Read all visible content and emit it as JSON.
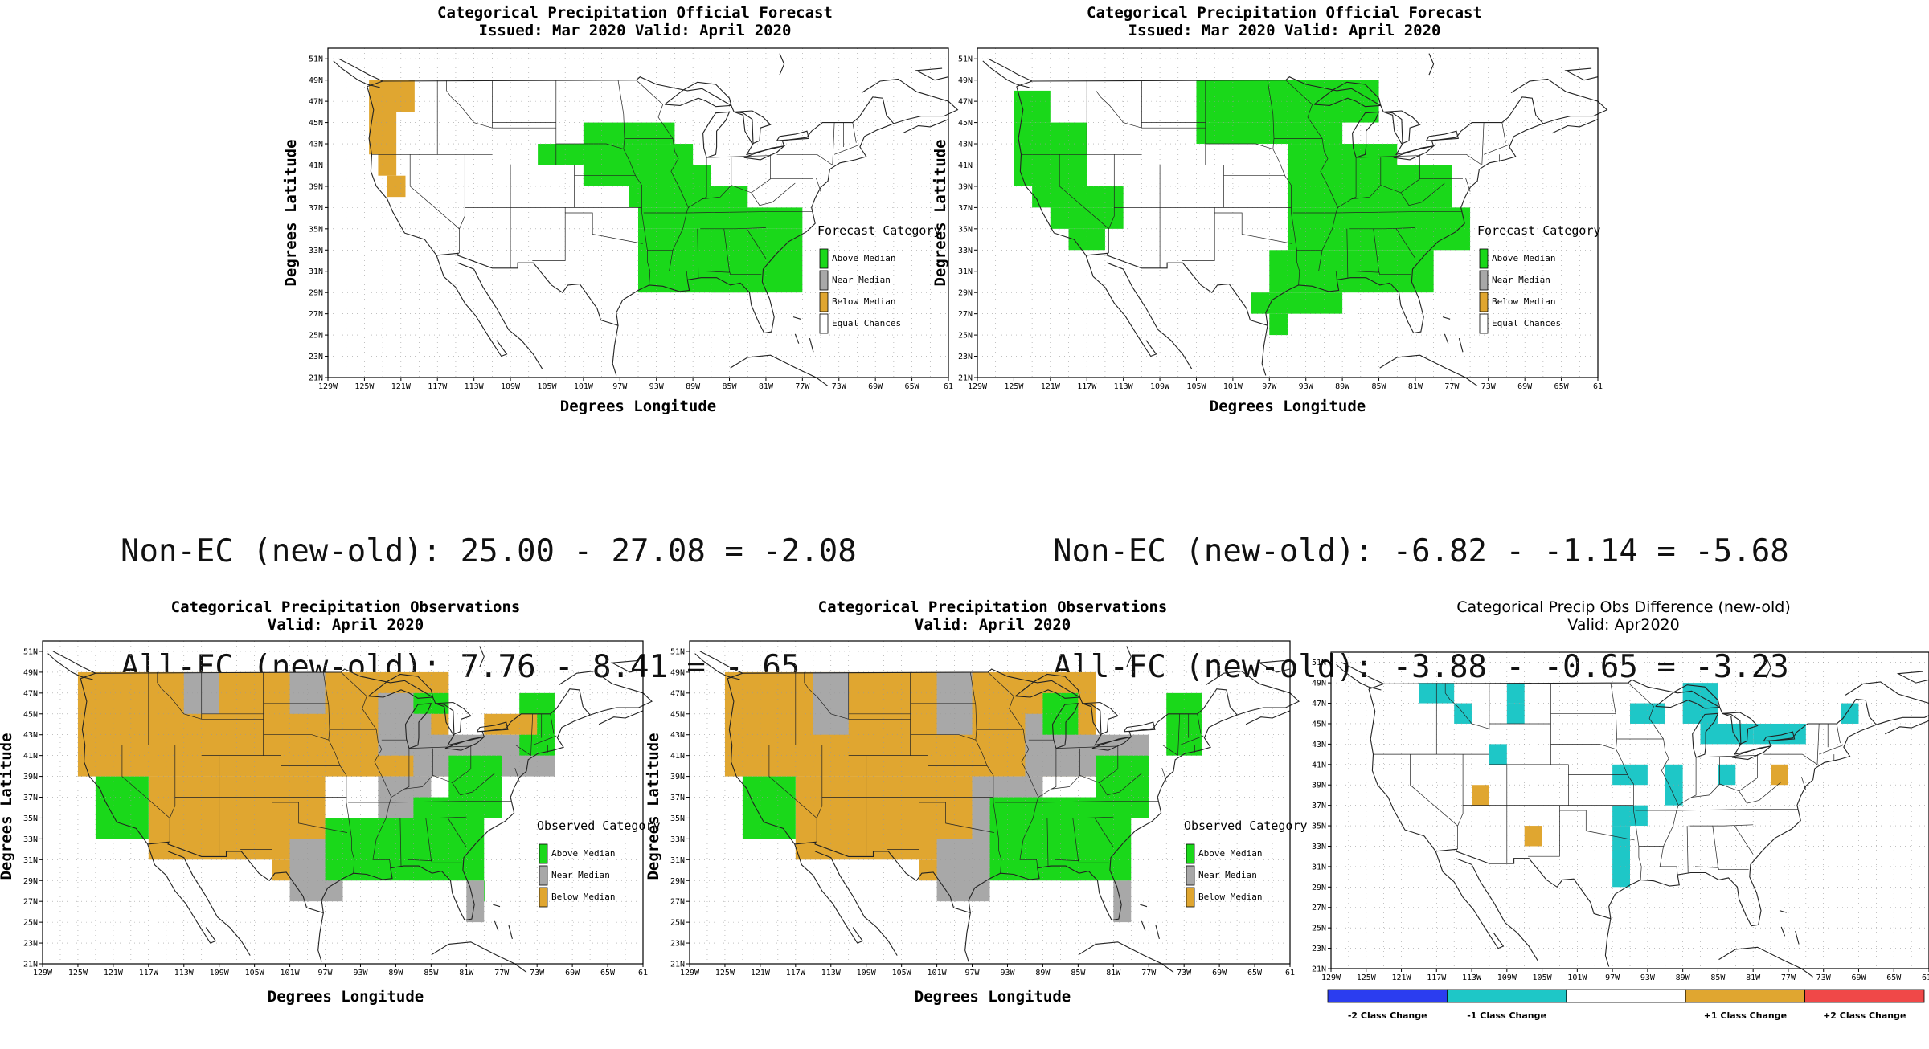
{
  "panels": [
    {
      "id": "fc-old",
      "title1": "Categorical Precipitation Official Forecast",
      "title2": "Issued: Mar 2020 Valid: April 2020",
      "xlabel": "Degrees Longitude",
      "ylabel": "Degrees Latitude",
      "legend_title": "Forecast Category",
      "legend_items": [
        {
          "label": "Above Median",
          "color": "#1ad81a"
        },
        {
          "label": "Near Median",
          "color": "#a8a8a8"
        },
        {
          "label": "Below Median",
          "color": "#e0a630"
        },
        {
          "label": "Equal Chances",
          "color": "#ffffff"
        }
      ]
    },
    {
      "id": "fc-new",
      "title1": "Categorical Precipitation Official Forecast",
      "title2": "Issued: Mar 2020 Valid: April 2020",
      "xlabel": "Degrees Longitude",
      "ylabel": "Degrees Latitude",
      "legend_title": "Forecast Category",
      "legend_items": [
        {
          "label": "Above Median",
          "color": "#1ad81a"
        },
        {
          "label": "Near Median",
          "color": "#a8a8a8"
        },
        {
          "label": "Below Median",
          "color": "#e0a630"
        },
        {
          "label": "Equal Chances",
          "color": "#ffffff"
        }
      ]
    },
    {
      "id": "obs-old",
      "title1": "Categorical Precipitation Observations",
      "title2": "Valid: April 2020",
      "xlabel": "Degrees Longitude",
      "ylabel": "Degrees Latitude",
      "legend_title": "Observed Category",
      "legend_items": [
        {
          "label": "Above Median",
          "color": "#1ad81a"
        },
        {
          "label": "Near Median",
          "color": "#a8a8a8"
        },
        {
          "label": "Below Median",
          "color": "#e0a630"
        }
      ]
    },
    {
      "id": "obs-new",
      "title1": "Categorical Precipitation Observations",
      "title2": "Valid: April 2020",
      "xlabel": "Degrees Longitude",
      "ylabel": "Degrees Latitude",
      "legend_title": "Observed Category",
      "legend_items": [
        {
          "label": "Above Median",
          "color": "#1ad81a"
        },
        {
          "label": "Near Median",
          "color": "#a8a8a8"
        },
        {
          "label": "Below Median",
          "color": "#e0a630"
        }
      ]
    },
    {
      "id": "diff",
      "title1": "Categorical Precip Obs Difference (new-old)",
      "title2": "Valid: Apr2020",
      "xlabel": "",
      "ylabel": "",
      "legend_title": "",
      "legend_items": [],
      "diff_legend": [
        {
          "label": "-2 Class Change",
          "color": "#2b3df0"
        },
        {
          "label": "-1 Class Change",
          "color": "#1ec7c7"
        },
        {
          "label": "",
          "color": "#ffffff"
        },
        {
          "label": "+1 Class Change",
          "color": "#e0a630"
        },
        {
          "label": "+2 Class Change",
          "color": "#f04848"
        }
      ]
    }
  ],
  "axes": {
    "lat_ticks": [
      "21N",
      "23N",
      "25N",
      "27N",
      "29N",
      "31N",
      "33N",
      "35N",
      "37N",
      "39N",
      "41N",
      "43N",
      "45N",
      "47N",
      "49N",
      "51N"
    ],
    "lon_ticks": [
      "129W",
      "125W",
      "121W",
      "117W",
      "113W",
      "109W",
      "105W",
      "101W",
      "97W",
      "93W",
      "89W",
      "85W",
      "81W",
      "77W",
      "73W",
      "69W",
      "65W",
      "61W"
    ],
    "lon_ticks_short": [
      "129W",
      "125W",
      "121W",
      "117W",
      "113W",
      "109W",
      "105W",
      "101W",
      "97W",
      "93W",
      "89W",
      "85W",
      "81W",
      "77W",
      "73W",
      "69W",
      "65W",
      "61"
    ]
  },
  "stats": {
    "left_line1": "Non-EC (new-old): 25.00 - 27.08 = -2.08",
    "left_line2": "All-FC (new-old): 7.76 - 8.41 = -.65",
    "right_line1": "Non-EC (new-old): -6.82 - -1.14 = -5.68",
    "right_line2": "All-FC (new-old): -3.88 - -0.65 = -3.23"
  },
  "map_data": {
    "grid_step_deg": 2,
    "categories": {
      "A": "Above Median",
      "N": "Near Median",
      "B": "Below Median",
      "C": "-1 Class Change",
      "P": "+1 Class Change"
    },
    "fc_old": [
      [
        "B",
        -124.5,
        46,
        -119.5,
        49
      ],
      [
        "B",
        -124.5,
        42,
        -121.5,
        46
      ],
      [
        "B",
        -123.5,
        40,
        -121.5,
        42
      ],
      [
        "B",
        -122.5,
        38,
        -120.5,
        40
      ],
      [
        "A",
        -101,
        43,
        -91,
        45
      ],
      [
        "A",
        -106,
        41,
        -89,
        43
      ],
      [
        "A",
        -101,
        39,
        -87,
        41
      ],
      [
        "A",
        -96,
        37,
        -83,
        39
      ],
      [
        "A",
        -95,
        35,
        -77,
        37
      ],
      [
        "A",
        -95,
        29,
        -77,
        35
      ],
      [
        "A",
        -87,
        29,
        -83,
        31
      ]
    ],
    "fc_new": [
      [
        "A",
        -125,
        45,
        -121,
        48
      ],
      [
        "A",
        -125,
        39,
        -117,
        45
      ],
      [
        "A",
        -123,
        37,
        -113,
        39
      ],
      [
        "A",
        -121,
        35,
        -113,
        37
      ],
      [
        "A",
        -119,
        33,
        -115,
        35
      ],
      [
        "A",
        -105,
        45,
        -85,
        49
      ],
      [
        "A",
        -105,
        43,
        -89,
        45
      ],
      [
        "A",
        -95,
        41,
        -83,
        43
      ],
      [
        "A",
        -95,
        37,
        -77,
        41
      ],
      [
        "A",
        -95,
        33,
        -75,
        37
      ],
      [
        "A",
        -97,
        29,
        -79,
        33
      ],
      [
        "A",
        -99,
        27,
        -89,
        29
      ],
      [
        "A",
        -97,
        25,
        -95,
        27
      ]
    ],
    "obs_old": [
      [
        "B",
        -125,
        39,
        -83,
        49
      ],
      [
        "B",
        -117,
        31,
        -97,
        39
      ],
      [
        "B",
        -103,
        29,
        -97,
        31
      ],
      [
        "N",
        -113,
        45,
        -109,
        49
      ],
      [
        "N",
        -101,
        45,
        -97,
        49
      ],
      [
        "N",
        -91,
        41,
        -85,
        47
      ],
      [
        "N",
        -87,
        39,
        -77,
        43
      ],
      [
        "N",
        -91,
        35,
        -85,
        39
      ],
      [
        "N",
        -77,
        39,
        -71,
        43
      ],
      [
        "N",
        -101,
        27,
        -95,
        33
      ],
      [
        "N",
        -81,
        25,
        -79,
        29
      ],
      [
        "A",
        -123,
        33,
        -117,
        39
      ],
      [
        "A",
        -97,
        29,
        -85,
        35
      ],
      [
        "A",
        -87,
        29,
        -79,
        37
      ],
      [
        "A",
        -83,
        35,
        -77,
        41
      ],
      [
        "A",
        -75,
        41,
        -71,
        47
      ],
      [
        "A",
        -79,
        27,
        -79,
        29
      ],
      [
        "A",
        -87,
        45,
        -83,
        47
      ],
      [
        "B",
        -79,
        43,
        -73,
        45
      ]
    ],
    "obs_new": [
      [
        "B",
        -125,
        39,
        -83,
        49
      ],
      [
        "B",
        -117,
        31,
        -97,
        39
      ],
      [
        "B",
        -103,
        29,
        -99,
        31
      ],
      [
        "N",
        -115,
        43,
        -111,
        49
      ],
      [
        "N",
        -101,
        43,
        -97,
        49
      ],
      [
        "N",
        -91,
        39,
        -85,
        45
      ],
      [
        "N",
        -87,
        39,
        -77,
        43
      ],
      [
        "N",
        -97,
        33,
        -89,
        39
      ],
      [
        "N",
        -101,
        27,
        -95,
        33
      ],
      [
        "N",
        -81,
        25,
        -79,
        29
      ],
      [
        "A",
        -123,
        33,
        -117,
        39
      ],
      [
        "A",
        -95,
        29,
        -85,
        37
      ],
      [
        "A",
        -87,
        29,
        -79,
        37
      ],
      [
        "A",
        -83,
        35,
        -77,
        41
      ],
      [
        "A",
        -75,
        41,
        -71,
        47
      ],
      [
        "A",
        -89,
        43,
        -85,
        47
      ]
    ],
    "diff": [
      [
        "C",
        -119,
        47,
        -115,
        49
      ],
      [
        "C",
        -109,
        47,
        -107,
        49
      ],
      [
        "C",
        -115,
        45,
        -113,
        47
      ],
      [
        "C",
        -109,
        45,
        -107,
        47
      ],
      [
        "C",
        -89,
        45,
        -85,
        49
      ],
      [
        "C",
        -95,
        45,
        -91,
        47
      ],
      [
        "C",
        -111,
        41,
        -109,
        43
      ],
      [
        "C",
        -97,
        39,
        -93,
        41
      ],
      [
        "C",
        -91,
        37,
        -89,
        41
      ],
      [
        "C",
        -97,
        35,
        -93,
        37
      ],
      [
        "C",
        -97,
        29,
        -95,
        35
      ],
      [
        "C",
        -87,
        43,
        -81,
        45
      ],
      [
        "C",
        -81,
        43,
        -75,
        45
      ],
      [
        "C",
        -71,
        45,
        -69,
        47
      ],
      [
        "C",
        -85,
        39,
        -83,
        41
      ],
      [
        "C",
        -87,
        45,
        -85,
        47
      ],
      [
        "P",
        -113,
        37,
        -111,
        39
      ],
      [
        "P",
        -107,
        33,
        -105,
        35
      ],
      [
        "P",
        -79,
        39,
        -77,
        41
      ]
    ]
  },
  "colors": {
    "above": "#1ad81a",
    "near": "#a8a8a8",
    "below": "#e0a630",
    "minus1": "#1ec7c7",
    "plus1": "#e0a630",
    "map_lines": "#222222",
    "grid": "#9a9a9a"
  }
}
